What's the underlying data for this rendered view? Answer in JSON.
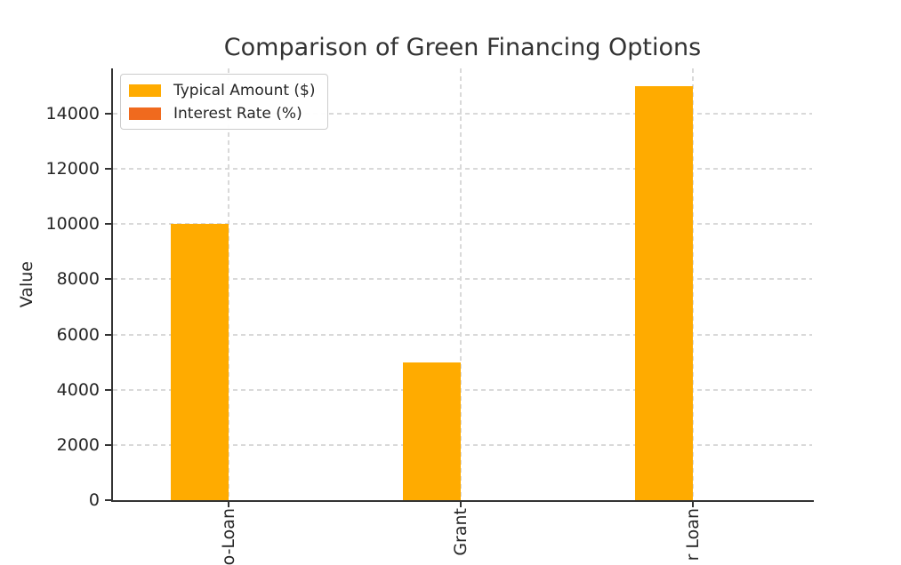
{
  "chart_data": {
    "type": "bar",
    "title": "Comparison of Green Financing Options",
    "xlabel": "",
    "ylabel": "Value",
    "categories": [
      "o-Loan",
      "Grant",
      "r Loan"
    ],
    "categories_note": "x tick labels are rotated 90 degrees and clipped by the bottom edge of the image; only these character runs are visible",
    "series": [
      {
        "name": "Typical Amount ($)",
        "color": "#FFAB00",
        "values": [
          10000,
          5000,
          15000
        ]
      },
      {
        "name": "Interest Rate (%)",
        "color": "#F06A1E",
        "values": [
          0,
          0,
          0
        ],
        "note": "interest-rate bars are too small to be visible at this axis scale"
      }
    ],
    "y_ticks": [
      0,
      2000,
      4000,
      6000,
      8000,
      10000,
      12000,
      14000
    ],
    "ylim": [
      0,
      15640
    ],
    "grid": "dashed light-gray horizontal and vertical gridlines",
    "legend_position": "upper-left",
    "spines": [
      "left",
      "bottom"
    ]
  },
  "colors": {
    "axis": "#333333",
    "text": "#262626",
    "gridline": "#d9d9d9",
    "background": "#ffffff"
  }
}
